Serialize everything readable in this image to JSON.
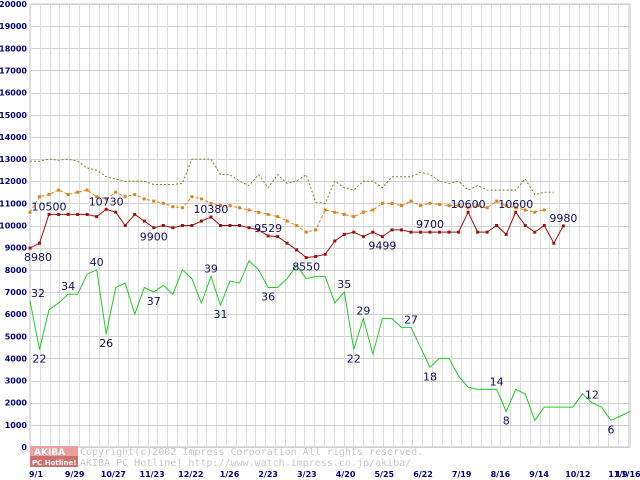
{
  "chart_data": {
    "type": "line",
    "title": "",
    "xlabel": "",
    "ylabel": "",
    "ylim": [
      0,
      20000
    ],
    "yticks": [
      0,
      1000,
      2000,
      3000,
      4000,
      5000,
      6000,
      7000,
      8000,
      9000,
      10000,
      11000,
      12000,
      13000,
      14000,
      15000,
      16000,
      17000,
      18000,
      19000,
      20000
    ],
    "xtick_labels": [
      "9/1",
      "9/29",
      "10/27",
      "11/23",
      "12/22",
      "1/26",
      "2/23",
      "3/23",
      "4/20",
      "5/25",
      "6/22",
      "7/19",
      "8/16",
      "9/14",
      "10/12",
      "11/9",
      "11/16"
    ],
    "grid": true,
    "legend": "none",
    "series": [
      {
        "color": "#808020",
        "style": "dotted",
        "values": [
          12900,
          12900,
          13000,
          12950,
          13000,
          12900,
          12600,
          12500,
          12200,
          12100,
          12000,
          12000,
          12000,
          11850,
          11850,
          11850,
          11900,
          13000,
          13000,
          13000,
          12300,
          12300,
          12000,
          11800,
          12300,
          11700,
          12300,
          11900,
          12000,
          12300,
          11050,
          11000,
          12000,
          11700,
          11600,
          12000,
          12000,
          11700,
          12200,
          12200,
          12200,
          12400,
          12300,
          12000,
          11900,
          12000,
          11600,
          11800,
          11600,
          11600,
          11600,
          11600,
          12100,
          11400,
          11500,
          11500
        ]
      },
      {
        "color": "#e08020",
        "style": "dashed-markers",
        "values": [
          10600,
          11300,
          11400,
          11600,
          11400,
          11500,
          11600,
          11300,
          11200,
          11500,
          11300,
          11400,
          11200,
          11100,
          11000,
          10850,
          10800,
          11300,
          11200,
          11000,
          10900,
          10900,
          10800,
          10700,
          10600,
          10500,
          10400,
          10200,
          10000,
          9700,
          9800,
          10700,
          10600,
          10500,
          10400,
          10600,
          10700,
          11000,
          11000,
          10900,
          11100,
          10900,
          11000,
          10950,
          10900,
          10900,
          10800,
          10900,
          10800,
          11100,
          10900,
          10800,
          10700,
          10600,
          10700
        ]
      },
      {
        "color": "#a01010",
        "style": "solid-markers",
        "values": [
          8980,
          9200,
          10500,
          10500,
          10500,
          10500,
          10500,
          10400,
          10730,
          10600,
          10000,
          10500,
          10200,
          9900,
          10000,
          9900,
          10000,
          10000,
          10200,
          10380,
          10000,
          10000,
          10000,
          9900,
          9800,
          9529,
          9500,
          9200,
          8900,
          8550,
          8600,
          8700,
          9300,
          9600,
          9700,
          9500,
          9700,
          9499,
          9800,
          9800,
          9700,
          9700,
          9700,
          9700,
          9700,
          9700,
          10600,
          9700,
          9700,
          10000,
          9600,
          10600,
          10000,
          9700,
          10000,
          9200,
          9980
        ]
      },
      {
        "color": "#20cc20",
        "style": "solid",
        "values": [
          6600,
          4400,
          6200,
          6500,
          6900,
          6900,
          7800,
          8000,
          5100,
          7200,
          7400,
          6000,
          7200,
          7000,
          7300,
          6900,
          8000,
          7600,
          6500,
          7700,
          6400,
          7500,
          7400,
          8400,
          8000,
          7200,
          7200,
          7600,
          8200,
          7600,
          7700,
          7700,
          6500,
          7000,
          4400,
          5800,
          4200,
          5800,
          5800,
          5400,
          5400,
          4500,
          3600,
          4000,
          4000,
          3200,
          2700,
          2600,
          2600,
          2600,
          1600,
          2600,
          2400,
          1200,
          1800,
          1800,
          1800,
          1800,
          2400,
          2000,
          1800,
          1200,
          1400,
          1600
        ]
      }
    ],
    "annotations": [
      {
        "text": "8980",
        "series": 2,
        "index": 0
      },
      {
        "text": "10500",
        "series": 2,
        "index": 2
      },
      {
        "text": "10730",
        "series": 2,
        "index": 8
      },
      {
        "text": "9900",
        "series": 2,
        "index": 13
      },
      {
        "text": "10380",
        "series": 2,
        "index": 19
      },
      {
        "text": "9529",
        "series": 2,
        "index": 25
      },
      {
        "text": "8550",
        "series": 2,
        "index": 29
      },
      {
        "text": "9499",
        "series": 2,
        "index": 37
      },
      {
        "text": "9700",
        "series": 2,
        "index": 42
      },
      {
        "text": "10600",
        "series": 2,
        "index": 46
      },
      {
        "text": "10600",
        "series": 2,
        "index": 51
      },
      {
        "text": "9980",
        "series": 2,
        "index": 56
      },
      {
        "text": "32",
        "series": 3,
        "index": 0
      },
      {
        "text": "22",
        "series": 3,
        "index": 1
      },
      {
        "text": "34",
        "series": 3,
        "index": 4
      },
      {
        "text": "40",
        "series": 3,
        "index": 7
      },
      {
        "text": "26",
        "series": 3,
        "index": 8
      },
      {
        "text": "37",
        "series": 3,
        "index": 13
      },
      {
        "text": "39",
        "series": 3,
        "index": 19
      },
      {
        "text": "31",
        "series": 3,
        "index": 20
      },
      {
        "text": "36",
        "series": 3,
        "index": 25
      },
      {
        "text": "35",
        "series": 3,
        "index": 33
      },
      {
        "text": "22",
        "series": 3,
        "index": 34
      },
      {
        "text": "29",
        "series": 3,
        "index": 35
      },
      {
        "text": "27",
        "series": 3,
        "index": 40
      },
      {
        "text": "18",
        "series": 3,
        "index": 42
      },
      {
        "text": "14",
        "series": 3,
        "index": 49
      },
      {
        "text": "8",
        "series": 3,
        "index": 50
      },
      {
        "text": "12",
        "series": 3,
        "index": 59
      },
      {
        "text": "6",
        "series": 3,
        "index": 61
      }
    ]
  },
  "watermark": {
    "logo_top": "AKIBA",
    "logo_bottom": "PC Hotline!",
    "line1": "Copyright(c)2002 Impress Corporation All rights reserved.",
    "line2": "AKIBA PC Hotline!  http://www.watch.impress.co.jp/akiba/"
  }
}
